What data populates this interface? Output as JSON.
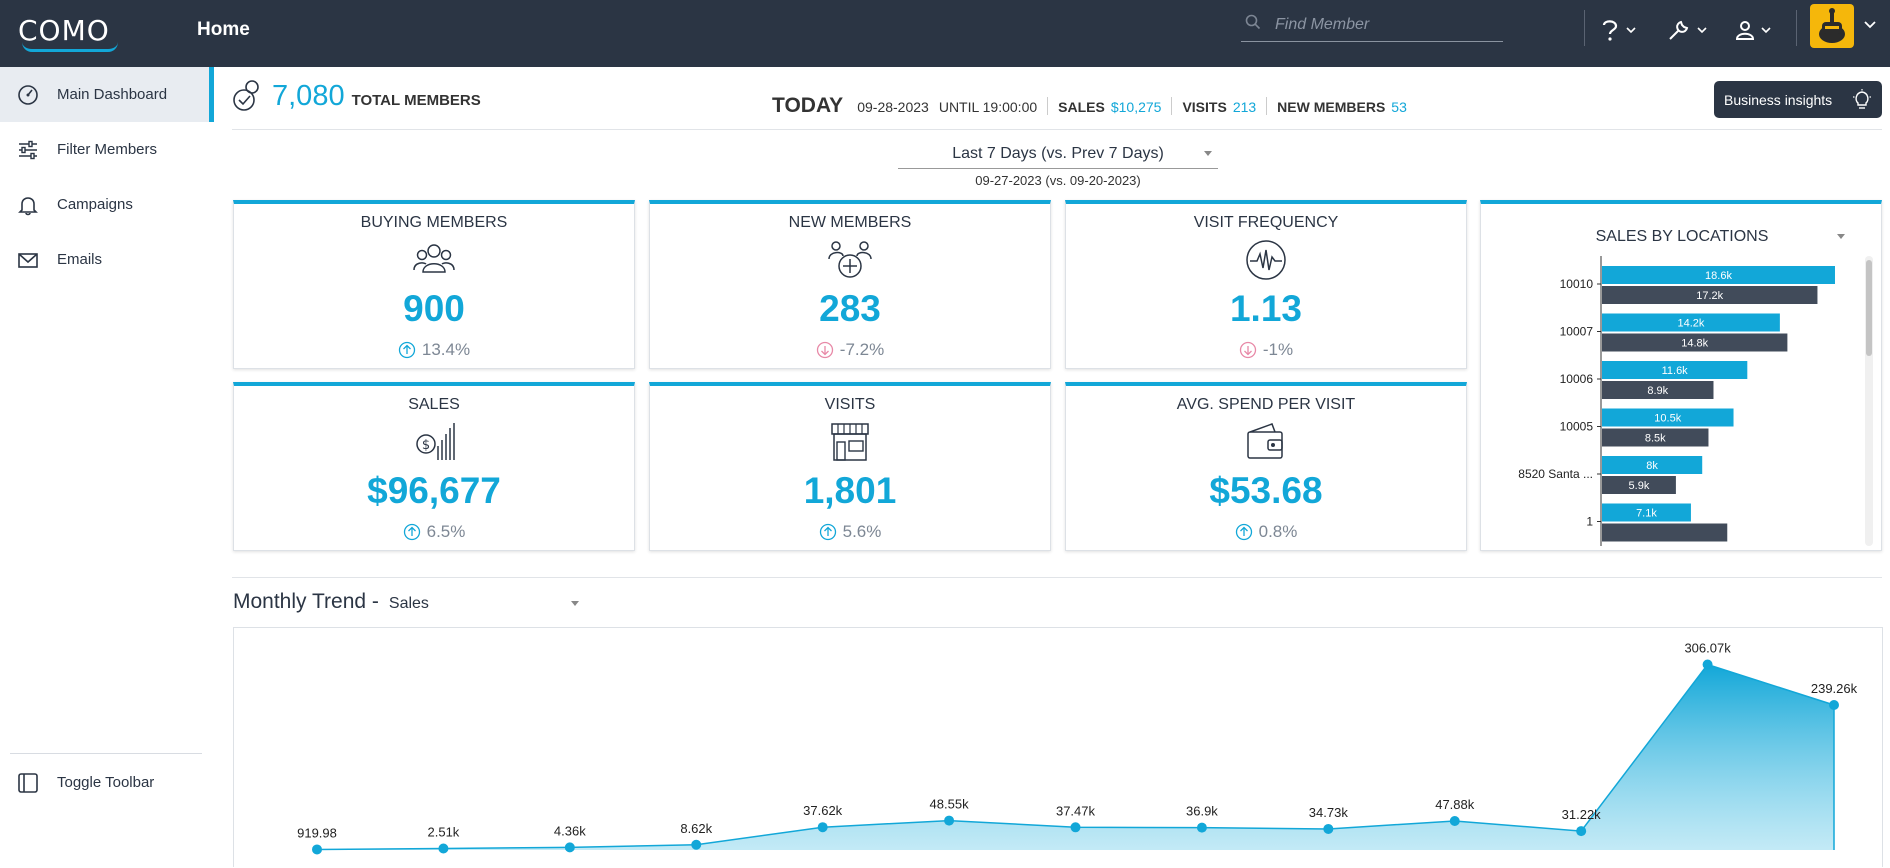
{
  "app": {
    "logo_text": "COMO",
    "page_title": "Home",
    "search_placeholder": "Find Member"
  },
  "colors": {
    "accent": "#12a7d8",
    "topbar": "#2b3544",
    "series_current": "#12a7d8",
    "series_previous": "#414b5a",
    "negative": "#e889a7"
  },
  "sidebar": {
    "items": [
      {
        "label": "Main Dashboard",
        "icon": "dashboard-gauge-icon",
        "active": true
      },
      {
        "label": "Filter Members",
        "icon": "sliders-icon",
        "active": false
      },
      {
        "label": "Campaigns",
        "icon": "bell-icon",
        "active": false
      },
      {
        "label": "Emails",
        "icon": "envelope-icon",
        "active": false
      }
    ],
    "toggle_label": "Toggle Toolbar"
  },
  "header": {
    "total_members": "7,080",
    "total_members_label": "TOTAL MEMBERS",
    "today_label": "TODAY",
    "date": "09-28-2023",
    "until": "UNTIL 19:00:00",
    "sales_label": "SALES",
    "sales_value": "$10,275",
    "visits_label": "VISITS",
    "visits_value": "213",
    "new_members_label": "NEW MEMBERS",
    "new_members_value": "53",
    "business_insights": "Business insights"
  },
  "period": {
    "selected": "Last 7 Days (vs. Prev 7 Days)",
    "range": "09-27-2023 (vs. 09-20-2023)"
  },
  "kpis": [
    {
      "title": "BUYING MEMBERS",
      "value": "900",
      "delta": "13.4%",
      "direction": "up",
      "icon": "users-group-icon"
    },
    {
      "title": "NEW MEMBERS",
      "value": "283",
      "delta": "-7.2%",
      "direction": "down",
      "icon": "add-member-icon"
    },
    {
      "title": "VISIT FREQUENCY",
      "value": "1.13",
      "delta": "-1%",
      "direction": "down",
      "icon": "pulse-icon"
    },
    {
      "title": "SALES",
      "value": "$96,677",
      "delta": "6.5%",
      "direction": "up",
      "icon": "dollar-bars-icon"
    },
    {
      "title": "VISITS",
      "value": "1,801",
      "delta": "5.6%",
      "direction": "up",
      "icon": "storefront-icon"
    },
    {
      "title": "AVG. SPEND PER VISIT",
      "value": "$53.68",
      "delta": "0.8%",
      "direction": "up",
      "icon": "wallet-icon"
    }
  ],
  "chart_data": [
    {
      "type": "bar",
      "title": "SALES BY LOCATIONS",
      "orientation": "horizontal",
      "categories": [
        "10010",
        "10007",
        "10006",
        "10005",
        "8520 Santa ...",
        "1"
      ],
      "series": [
        {
          "values": [
            18.6,
            14.2,
            11.6,
            10.5,
            8,
            7.1
          ],
          "labels": [
            "18.6k",
            "14.2k",
            "11.6k",
            "10.5k",
            "8k",
            "7.1k"
          ]
        },
        {
          "values": [
            17.2,
            14.8,
            8.9,
            8.5,
            5.9,
            10
          ],
          "labels": [
            "17.2k",
            "14.8k",
            "8.9k",
            "8.5k",
            "5.9k",
            ""
          ]
        }
      ],
      "xlim": [
        0,
        19
      ]
    },
    {
      "type": "area",
      "title": "Monthly Trend -",
      "metric_selected": "Sales",
      "values": [
        919.98,
        2510,
        4360,
        8620,
        37620,
        48550,
        37470,
        36900,
        34730,
        47880,
        31220,
        306070,
        239260
      ],
      "labels": [
        "919.98",
        "2.51k",
        "4.36k",
        "8.62k",
        "37.62k",
        "48.55k",
        "37.47k",
        "36.9k",
        "34.73k",
        "47.88k",
        "31.22k",
        "306.07k",
        "239.26k"
      ],
      "ylim": [
        0,
        330000
      ]
    }
  ]
}
